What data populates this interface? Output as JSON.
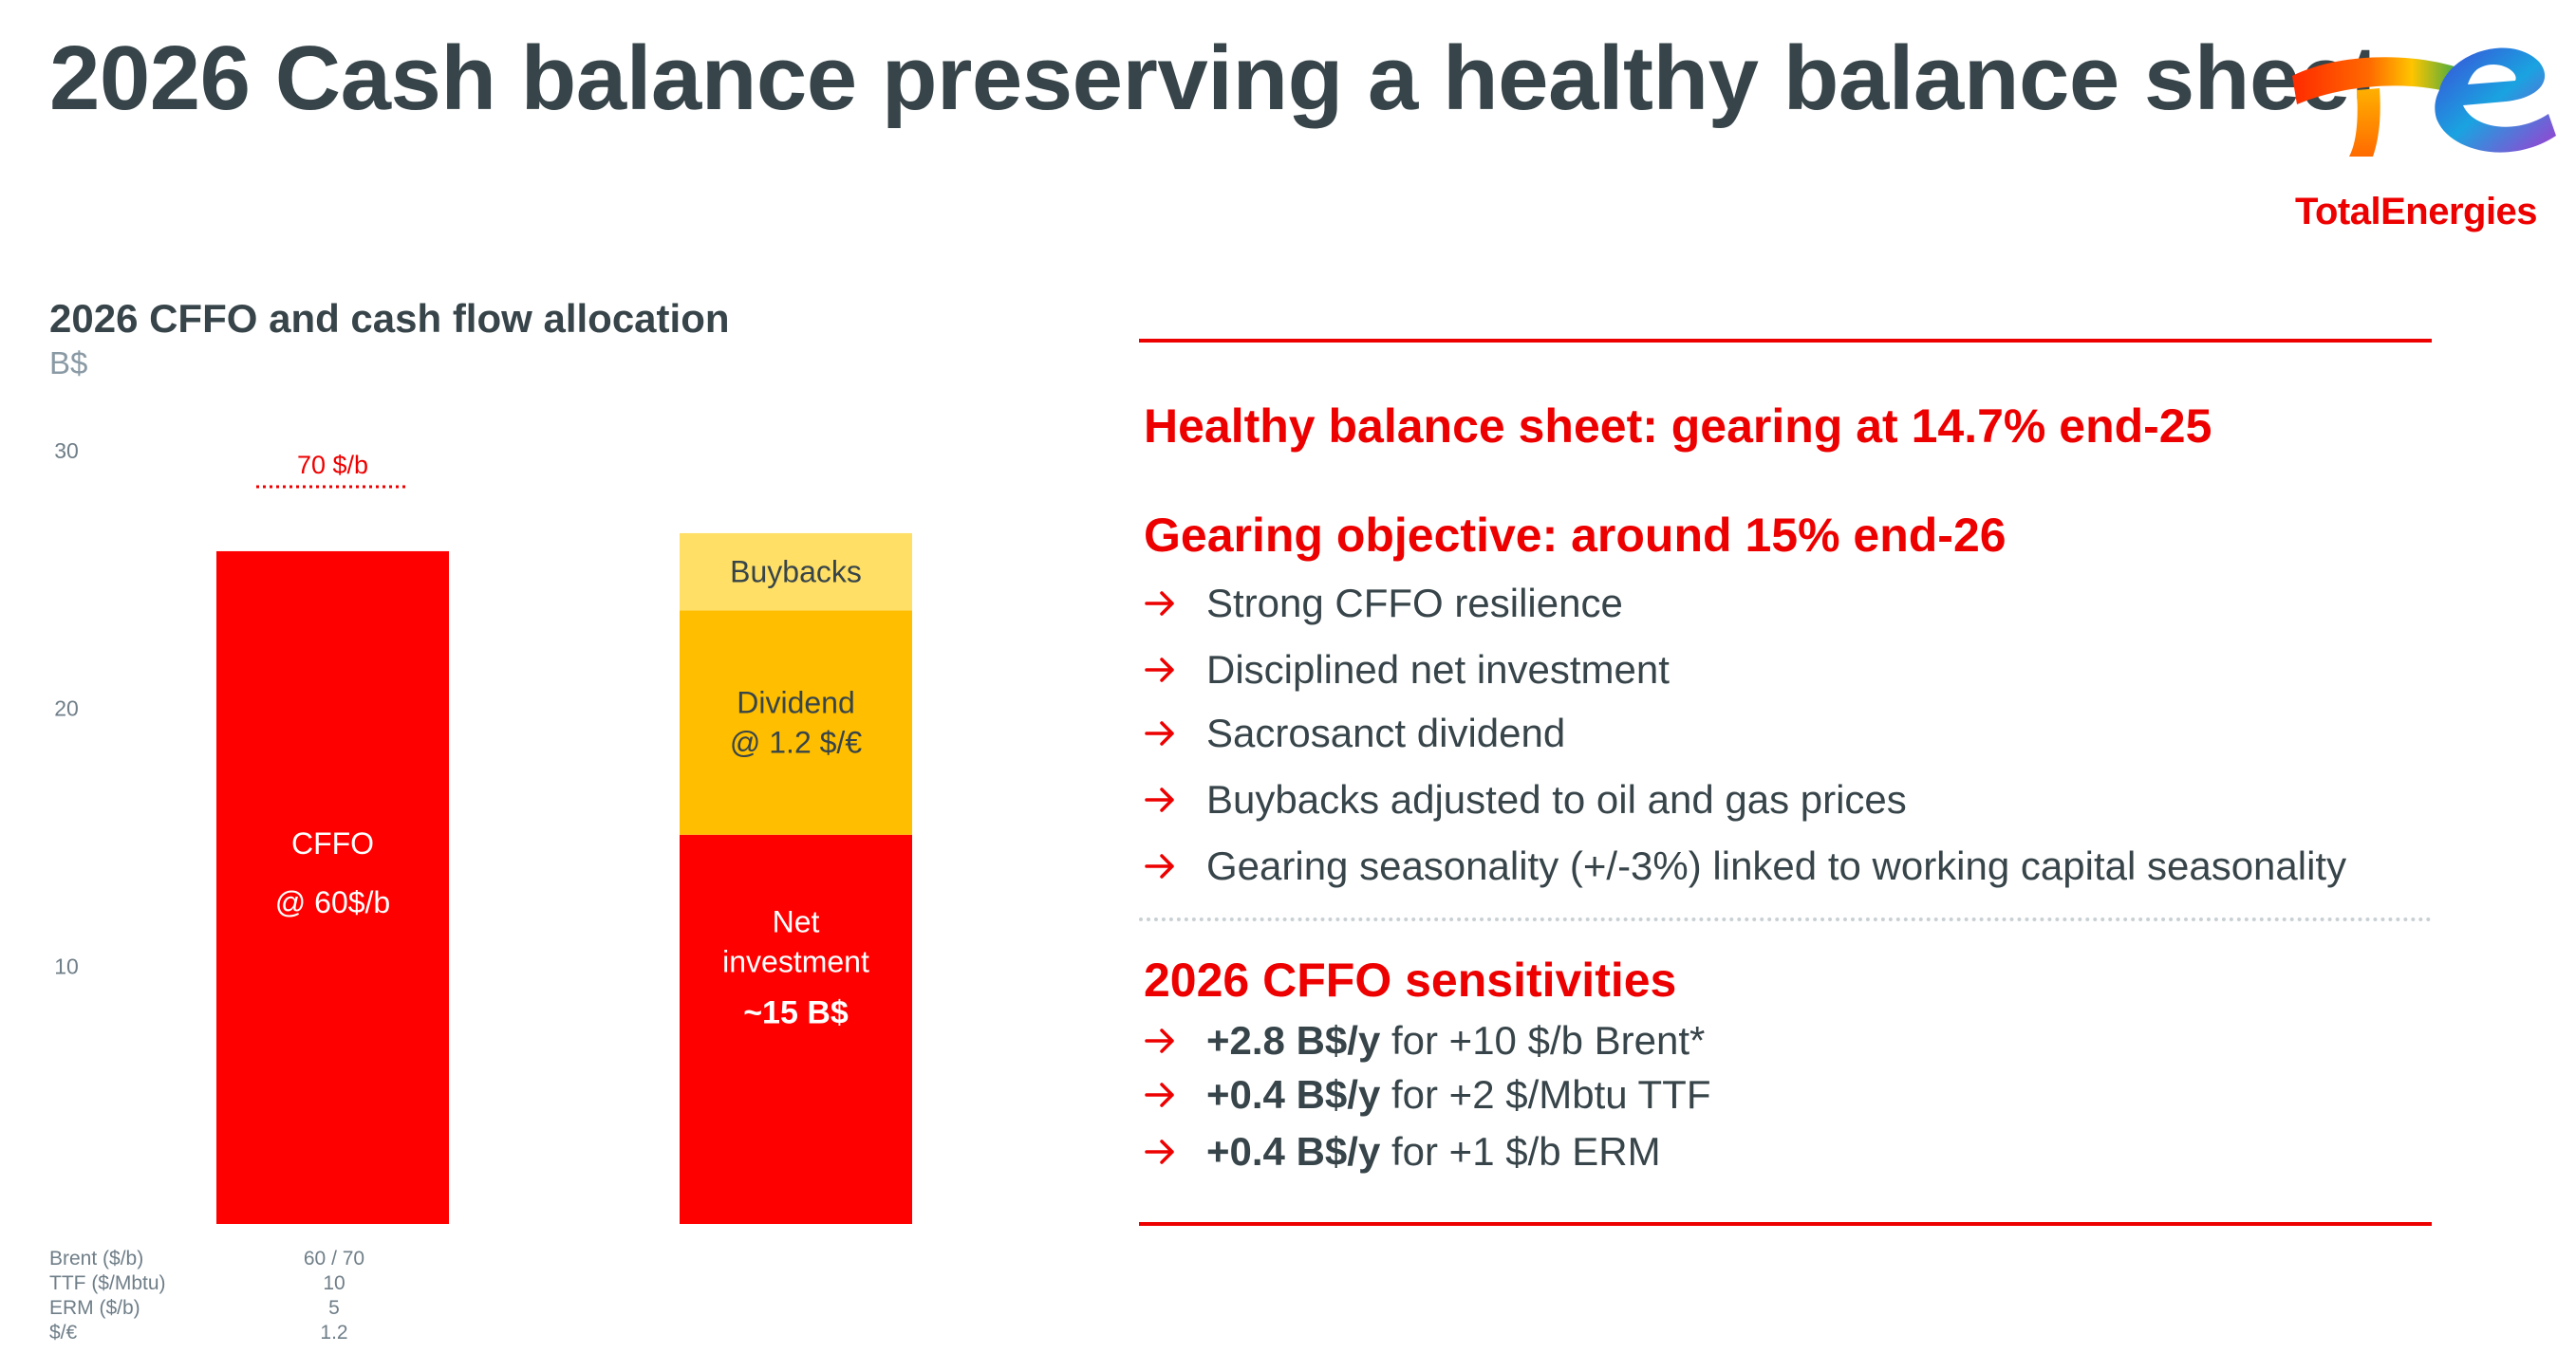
{
  "header": {
    "title": "2026 Cash balance preserving a healthy balance sheet",
    "logo_text": "TotalEnergies"
  },
  "colors": {
    "accent_red": "#ed0000",
    "dark_text": "#374449",
    "cffo_red": "#ff0000",
    "dividend_orange": "#ffbf00",
    "buybacks_yellow": "#ffdf66"
  },
  "chart_data": {
    "type": "bar",
    "title": "2026 CFFO and cash flow allocation",
    "ylabel": "B$",
    "ylim": [
      0,
      30
    ],
    "yticks": [
      10,
      20,
      30
    ],
    "grid": false,
    "reference_line": {
      "label": "70 $/b",
      "value": 28.6,
      "bar": 0
    },
    "bars": [
      {
        "segments": [
          {
            "name": "CFFO",
            "bottom": 0,
            "top": 26.1,
            "color": "#ff0000",
            "label": "CFFO",
            "label2": "@ 60$/b"
          }
        ]
      },
      {
        "segments": [
          {
            "name": "Net investment",
            "bottom": 0,
            "top": 15.1,
            "color": "#ff0000",
            "label": "Net",
            "label2": "investment",
            "label3": "~15 B$"
          },
          {
            "name": "Dividend",
            "bottom": 15.1,
            "top": 23.8,
            "color": "#ffbf00",
            "label": "Dividend",
            "label2": "@ 1.2 $/€"
          },
          {
            "name": "Buybacks",
            "bottom": 23.8,
            "top": 26.8,
            "color": "#ffdf66",
            "label": "Buybacks"
          }
        ]
      }
    ]
  },
  "assumptions": [
    {
      "label": "Brent ($/b)",
      "value": "60 / 70"
    },
    {
      "label": "TTF ($/Mbtu)",
      "value": "10"
    },
    {
      "label": "ERM ($/b)",
      "value": "5"
    },
    {
      "label": "$/€",
      "value": "1.2"
    }
  ],
  "right": {
    "heading1": "Healthy balance sheet: gearing at 14.7% end-25",
    "heading2": "Gearing objective: around 15% end-26",
    "bullets": [
      "Strong CFFO resilience",
      "Disciplined net investment",
      "Sacrosanct dividend",
      "Buybacks adjusted to oil and gas prices",
      "Gearing seasonality (+/-3%) linked to working capital seasonality"
    ],
    "heading3": "2026 CFFO sensitivities",
    "sensitivities": [
      {
        "value": "+2.8 B$/y",
        "text": "for +10 $/b Brent*"
      },
      {
        "value": "+0.4 B$/y",
        "text": "for +2 $/Mbtu TTF"
      },
      {
        "value": "+0.4 B$/y",
        "text": "for +1 $/b ERM"
      }
    ]
  }
}
